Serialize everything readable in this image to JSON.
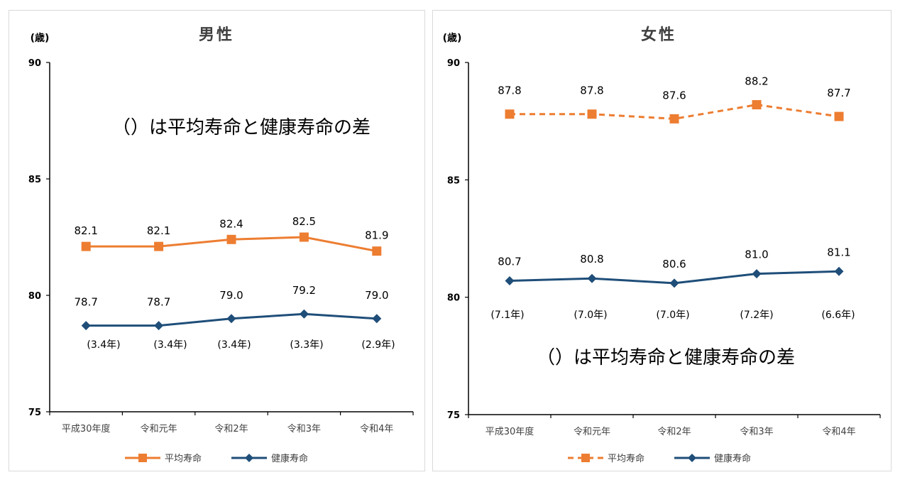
{
  "unit_label": "(歳)",
  "note": "（）は平均寿命と健康寿命の差",
  "colors": {
    "avg": "#ED7D31",
    "healthy": "#1F4E79"
  },
  "chart_data": [
    {
      "type": "line",
      "title": "男性",
      "categories": [
        "平成30年度",
        "令和元年",
        "令和2年",
        "令和3年",
        "令和4年"
      ],
      "ylim": [
        75,
        90
      ],
      "yticks": [
        "75",
        "80",
        "85",
        "90"
      ],
      "series": [
        {
          "name": "平均寿命",
          "values": [
            82.1,
            82.1,
            82.4,
            82.5,
            81.9
          ],
          "labels": [
            "82.1",
            "82.1",
            "82.4",
            "82.5",
            "81.9"
          ],
          "style": "solid",
          "marker": "square"
        },
        {
          "name": "健康寿命",
          "values": [
            78.7,
            78.7,
            79.0,
            79.2,
            79.0
          ],
          "labels": [
            "78.7",
            "78.7",
            "79.0",
            "79.2",
            "79.0"
          ],
          "style": "solid",
          "marker": "diamond"
        }
      ],
      "gaps": [
        "(3.4年)",
        "(3.4年)",
        "(3.4年)",
        "(3.3年)",
        "(2.9年)"
      ],
      "legend": [
        "平均寿命",
        "健康寿命"
      ],
      "grid": false
    },
    {
      "type": "line",
      "title": "女性",
      "categories": [
        "平成30年度",
        "令和元年",
        "令和2年",
        "令和3年",
        "令和4年"
      ],
      "ylim": [
        75,
        90
      ],
      "yticks": [
        "75",
        "80",
        "85",
        "90"
      ],
      "series": [
        {
          "name": "平均寿命",
          "values": [
            87.8,
            87.8,
            87.6,
            88.2,
            87.7
          ],
          "labels": [
            "87.8",
            "87.8",
            "87.6",
            "88.2",
            "87.7"
          ],
          "style": "dashed",
          "marker": "square"
        },
        {
          "name": "健康寿命",
          "values": [
            80.7,
            80.8,
            80.6,
            81.0,
            81.1
          ],
          "labels": [
            "80.7",
            "80.8",
            "80.6",
            "81.0",
            "81.1"
          ],
          "style": "solid",
          "marker": "diamond"
        }
      ],
      "gaps": [
        "(7.1年)",
        "(7.0年)",
        "(7.0年)",
        "(7.2年)",
        "(6.6年)"
      ],
      "legend": [
        "平均寿命",
        "健康寿命"
      ],
      "grid": false
    }
  ]
}
